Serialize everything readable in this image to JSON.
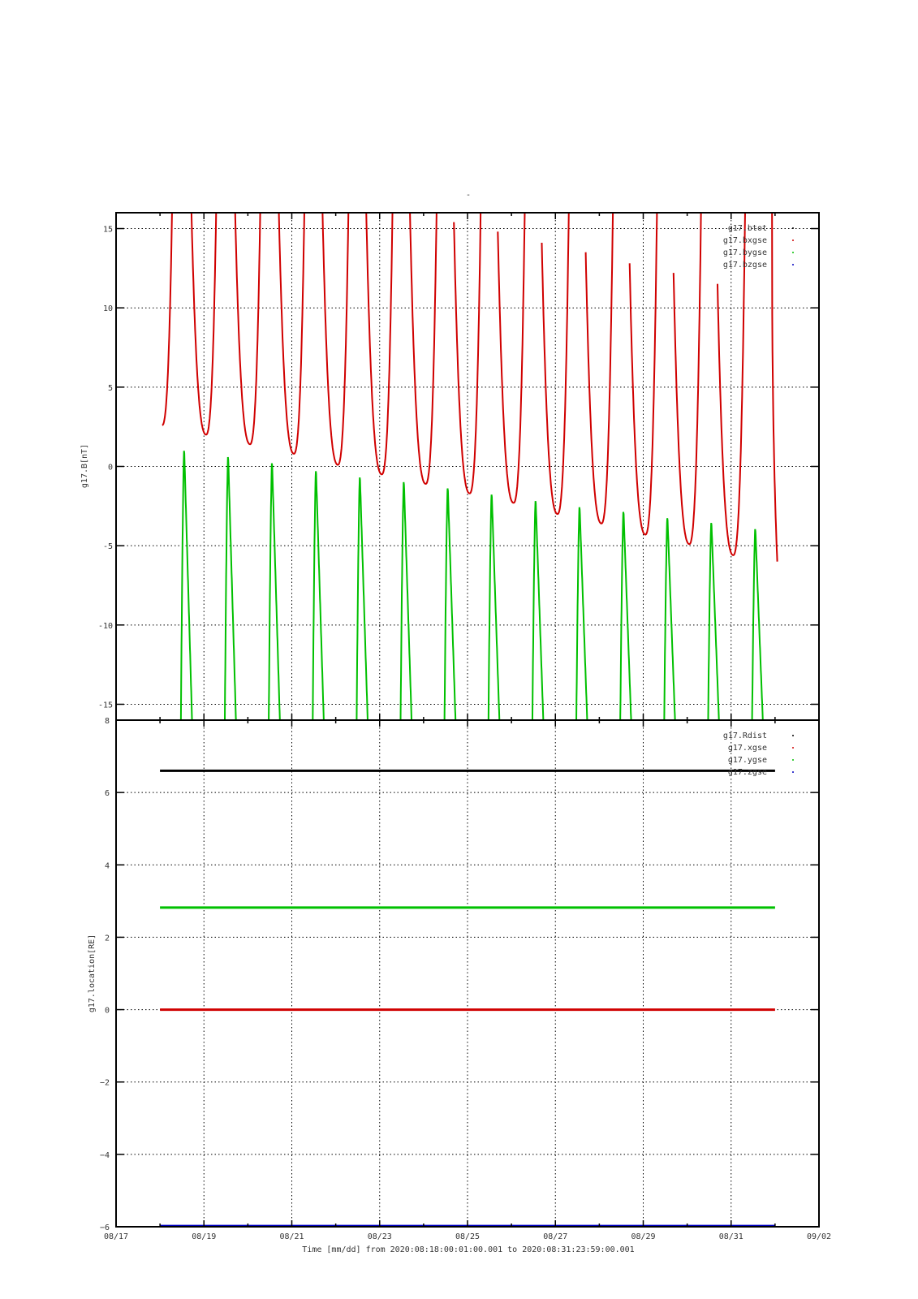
{
  "figure": {
    "top_title": "-",
    "xlabel": "Time [mm/dd]  from 2020:08:18:00:01:00.001  to  2020:08:31:23:59:00.001",
    "x_tick_labels": [
      "08/17",
      "08/19",
      "08/21",
      "08/23",
      "08/25",
      "08/27",
      "08/29",
      "08/31",
      "09/02"
    ]
  },
  "chart_data": [
    {
      "type": "scatter",
      "title": "-",
      "ylabel": "g17.B[nT]",
      "xlim": [
        "2020-08-17",
        "2020-09-02"
      ],
      "ylim": [
        -16,
        16
      ],
      "y_ticks": [
        15,
        10,
        5,
        0,
        -5,
        -10,
        -15
      ],
      "y_tick_labels": [
        "15",
        "10",
        "5",
        "0",
        "-5",
        "-10",
        "-15"
      ],
      "grid": true,
      "legend_position": "top-right",
      "x_unit": "days since 2020-08-17 00:00",
      "series": [
        {
          "name": "g17.btot",
          "color": "#000000",
          "x": [],
          "y": []
        },
        {
          "name": "g17.bxgse",
          "color": "#d00000",
          "minima_x": [
            1.05,
            2.05,
            3.05,
            4.05,
            5.05,
            6.05,
            7.05,
            8.05,
            9.05,
            10.05,
            11.05,
            12.05,
            13.05,
            14.05
          ],
          "minima_y": [
            2.6,
            2.0,
            1.4,
            0.8,
            0.1,
            -0.5,
            -1.1,
            -1.7,
            -2.3,
            -3.0,
            -3.6,
            -4.3,
            -4.9,
            -5.6
          ],
          "x_end": 15.05,
          "y_end": -6.0
        },
        {
          "name": "g17.bygse",
          "color": "#00c000",
          "maxima_x": [
            1.55,
            2.55,
            3.55,
            4.55,
            5.55,
            6.55,
            7.55,
            8.55,
            9.55,
            10.55,
            11.55,
            12.55,
            13.55,
            14.55
          ],
          "maxima_y": [
            1.2,
            0.8,
            0.4,
            -0.1,
            -0.5,
            -0.8,
            -1.2,
            -1.6,
            -2.0,
            -2.4,
            -2.7,
            -3.1,
            -3.4,
            -3.8
          ]
        },
        {
          "name": "g17.bzgse",
          "color": "#0000c0",
          "x": [],
          "y": []
        }
      ]
    },
    {
      "type": "line",
      "ylabel": "g17.location[RE]",
      "xlabel": "Time [mm/dd]  from 2020:08:18:00:01:00.001  to  2020:08:31:23:59:00.001",
      "xlim": [
        "2020-08-17",
        "2020-09-02"
      ],
      "ylim": [
        -6,
        8
      ],
      "y_ticks": [
        8,
        6,
        4,
        2,
        0,
        -2,
        -4,
        -6
      ],
      "y_tick_labels": [
        "8",
        "6",
        "4",
        "2",
        "0",
        "−2",
        "−4",
        "−6"
      ],
      "grid": true,
      "legend_position": "top-right",
      "x_unit": "days since 2020-08-17 00:00",
      "series": [
        {
          "name": "g17.Rdist",
          "color": "#000000",
          "x": [
            1.0,
            15.0
          ],
          "y": [
            6.6,
            6.6
          ]
        },
        {
          "name": "g17.xgse",
          "color": "#d00000",
          "x": [
            1.0,
            15.0
          ],
          "y": [
            0.0,
            0.0
          ]
        },
        {
          "name": "g17.ygse",
          "color": "#00c000",
          "x": [
            1.0,
            15.0
          ],
          "y": [
            2.82,
            2.82
          ]
        },
        {
          "name": "g17.zgse",
          "color": "#0000c0",
          "x": [
            1.0,
            15.0
          ],
          "y": [
            -5.98,
            -5.98
          ]
        }
      ]
    }
  ]
}
